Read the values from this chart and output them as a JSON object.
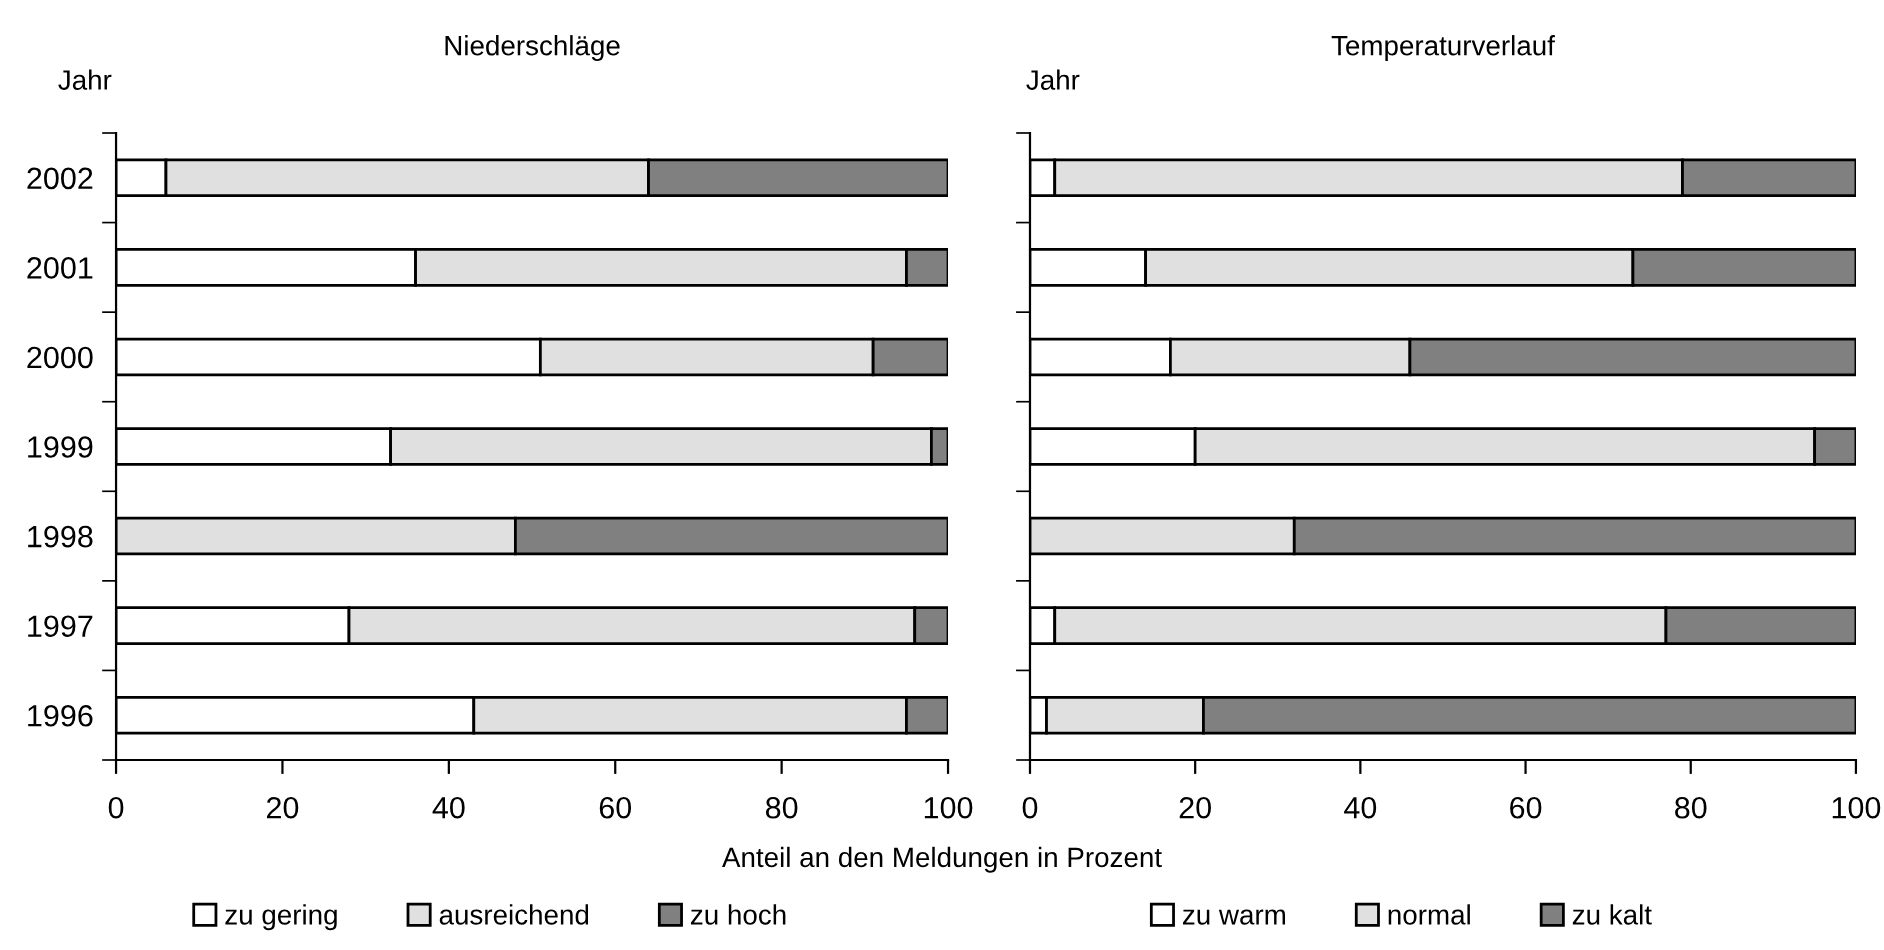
{
  "chart_data": [
    {
      "type": "bar",
      "orientation": "horizontal",
      "stacked": true,
      "title": "Niederschläge",
      "ylabel": "Jahr",
      "xlabel": "Anteil an den Meldungen in Prozent",
      "categories": [
        "2002",
        "2001",
        "2000",
        "1999",
        "1998",
        "1997",
        "1996"
      ],
      "series": [
        {
          "name": "zu gering",
          "color": "#ffffff",
          "values": [
            6,
            36,
            51,
            33,
            0,
            28,
            43
          ]
        },
        {
          "name": "ausreichend",
          "color": "#e0e0e0",
          "values": [
            58,
            59,
            40,
            65,
            48,
            68,
            52
          ]
        },
        {
          "name": "zu hoch",
          "color": "#808080",
          "values": [
            36,
            5,
            9,
            2,
            52,
            4,
            5
          ]
        }
      ],
      "xlim": [
        0,
        100
      ],
      "xticks": [
        0,
        20,
        40,
        60,
        80,
        100
      ],
      "legend": "bottom",
      "grid": false
    },
    {
      "type": "bar",
      "orientation": "horizontal",
      "stacked": true,
      "title": "Temperaturverlauf",
      "ylabel": "Jahr",
      "categories": [
        "2002",
        "2001",
        "2000",
        "1999",
        "1998",
        "1997",
        "1996"
      ],
      "series": [
        {
          "name": "zu warm",
          "color": "#ffffff",
          "values": [
            3,
            14,
            17,
            20,
            0,
            3,
            2
          ]
        },
        {
          "name": "normal",
          "color": "#e0e0e0",
          "values": [
            76,
            59,
            29,
            75,
            32,
            74,
            19
          ]
        },
        {
          "name": "zu kalt",
          "color": "#808080",
          "values": [
            21,
            27,
            54,
            5,
            68,
            23,
            79
          ]
        }
      ],
      "xlim": [
        0,
        100
      ],
      "xticks": [
        0,
        20,
        40,
        60,
        80,
        100
      ],
      "legend": "bottom",
      "grid": false,
      "tick_labels": "x"
    }
  ]
}
